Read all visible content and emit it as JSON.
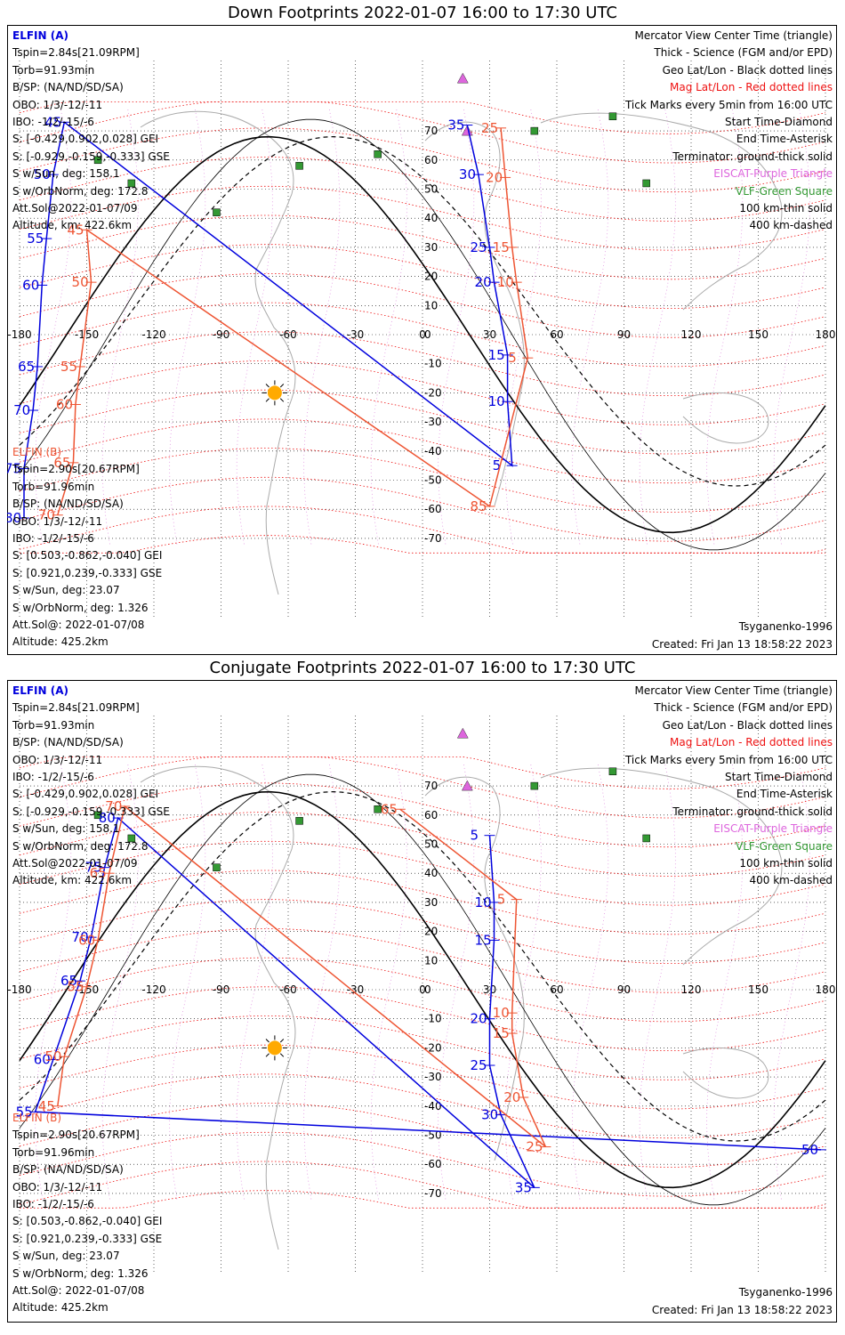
{
  "colors": {
    "elfin_a": "#0000dd",
    "elfin_b": "#ee5533",
    "mag_grid": "#ee1111",
    "geo_grid": "#000000",
    "eiscat": "#dd66dd",
    "vlf": "#339933",
    "coast": "#aaaaaa"
  },
  "axes": {
    "lon_labels": [
      "-180",
      "-150",
      "-120",
      "-90",
      "-60",
      "-30",
      "0",
      "30",
      "60",
      "90",
      "120",
      "150",
      "180"
    ],
    "lat_labels": [
      "70",
      "60",
      "50",
      "40",
      "30",
      "20",
      "10",
      "0",
      "-10",
      "-20",
      "-30",
      "-40",
      "-50",
      "-60",
      "-70"
    ]
  },
  "panels": [
    {
      "title": "Down Footprints 2022-01-07 16:00 to 17:30 UTC",
      "elfin_a": {
        "name": "ELFIN (A)",
        "lines": [
          "Tspin=2.84s[21.09RPM]",
          "Torb=91.93min",
          "B/SP: (NA/ND/SD/SA)",
          "OBO: 1/3/-12/-11",
          "IBO: -1/2/-15/-6",
          "S: [-0.429,0.902,0.028] GEI",
          "S: [-0.929,-0.159,-0.333] GSE",
          "S w/Sun, deg: 158.1",
          "S w/OrbNorm, deg: 172.8",
          "Att.Sol@2022-01-07/09",
          "Altitude, km: 422.6km"
        ]
      },
      "elfin_b": {
        "name": "ELFIN (B)",
        "lines": [
          "Tspin=2.90s[20.67RPM]",
          "Torb=91.96min",
          "B/SP: (NA/ND/SD/SA)",
          "OBO: 1/3/-12/-11",
          "IBO: -1/2/-15/-6",
          "S: [0.503,-0.862,-0.040] GEI",
          "S: [0.921,0.239,-0.333] GSE",
          "S w/Sun, deg: 23.07",
          "S w/OrbNorm, deg: 1.326",
          "Att.Sol@: 2022-01-07/08",
          "Altitude: 425.2km"
        ]
      },
      "legend": [
        {
          "text": "Mercator View Center Time (triangle)",
          "color": "#000000"
        },
        {
          "text": "Thick - Science (FGM and/or EPD)",
          "color": "#000000"
        },
        {
          "text": "Geo Lat/Lon - Black dotted lines",
          "color": "#000000"
        },
        {
          "text": "Mag Lat/Lon - Red dotted lines",
          "color": "#ee1111"
        },
        {
          "text": "Tick Marks every 5min from 16:00 UTC",
          "color": "#000000"
        },
        {
          "text": "Start Time-Diamond",
          "color": "#000000"
        },
        {
          "text": "End Time-Asterisk",
          "color": "#000000"
        },
        {
          "text": "Terminator: ground-thick solid",
          "color": "#000000"
        },
        {
          "text": "EISCAT-Purple Triangle",
          "color": "#dd66dd"
        },
        {
          "text": "VLF-Green Square",
          "color": "#339933"
        },
        {
          "text": "100 km-thin solid",
          "color": "#000000"
        },
        {
          "text": "400 km-dashed",
          "color": "#000000"
        }
      ],
      "model": "Tsyganenko-1996",
      "created": "Created: Fri Jan 13 18:58:22 2023",
      "a_ticks": [
        {
          "label": "35",
          "lon": 20,
          "lat": 72
        },
        {
          "label": "30",
          "lon": 25,
          "lat": 55
        },
        {
          "label": "25",
          "lon": 30,
          "lat": 30
        },
        {
          "label": "20",
          "lon": 32,
          "lat": 18
        },
        {
          "label": "15",
          "lon": 38,
          "lat": -7
        },
        {
          "label": "10",
          "lon": 38,
          "lat": -23
        },
        {
          "label": "5",
          "lon": 40,
          "lat": -45
        },
        {
          "label": "45",
          "lon": -160,
          "lat": 73
        },
        {
          "label": "50",
          "lon": -165,
          "lat": 55
        },
        {
          "label": "55",
          "lon": -168,
          "lat": 33
        },
        {
          "label": "60",
          "lon": -170,
          "lat": 17
        },
        {
          "label": "65",
          "lon": -172,
          "lat": -11
        },
        {
          "label": "70",
          "lon": -174,
          "lat": -26
        },
        {
          "label": "75",
          "lon": -178,
          "lat": -46
        },
        {
          "label": "80",
          "lon": -178,
          "lat": -63
        }
      ],
      "b_ticks": [
        {
          "label": "25",
          "lon": 35,
          "lat": 71
        },
        {
          "label": "20",
          "lon": 37,
          "lat": 54
        },
        {
          "label": "15",
          "lon": 40,
          "lat": 30
        },
        {
          "label": "10",
          "lon": 42,
          "lat": 18
        },
        {
          "label": "5",
          "lon": 47,
          "lat": -8
        },
        {
          "label": "85",
          "lon": 30,
          "lat": -59
        },
        {
          "label": "45",
          "lon": -150,
          "lat": 36
        },
        {
          "label": "50",
          "lon": -148,
          "lat": 18
        },
        {
          "label": "55",
          "lon": -153,
          "lat": -11
        },
        {
          "label": "60",
          "lon": -155,
          "lat": -24
        },
        {
          "label": "65",
          "lon": -156,
          "lat": -44
        },
        {
          "label": "70",
          "lon": -163,
          "lat": -62
        }
      ]
    },
    {
      "title": "Conjugate Footprints 2022-01-07 16:00 to 17:30 UTC",
      "elfin_a": {
        "name": "ELFIN (A)",
        "lines": [
          "Tspin=2.84s[21.09RPM]",
          "Torb=91.93min",
          "B/SP: (NA/ND/SD/SA)",
          "OBO: 1/3/-12/-11",
          "IBO: -1/2/-15/-6",
          "S: [-0.429,0.902,0.028] GEI",
          "S: [-0.929,-0.159,-0.333] GSE",
          "S w/Sun, deg: 158.1",
          "S w/OrbNorm, deg: 172.8",
          "Att.Sol@2022-01-07/09",
          "Altitude, km: 422.6km"
        ]
      },
      "elfin_b": {
        "name": "ELFIN (B)",
        "lines": [
          "Tspin=2.90s[20.67RPM]",
          "Torb=91.96min",
          "B/SP: (NA/ND/SD/SA)",
          "OBO: 1/3/-12/-11",
          "IBO: -1/2/-15/-6",
          "S: [0.503,-0.862,-0.040] GEI",
          "S: [0.921,0.239,-0.333] GSE",
          "S w/Sun, deg: 23.07",
          "S w/OrbNorm, deg: 1.326",
          "Att.Sol@: 2022-01-07/08",
          "Altitude: 425.2km"
        ]
      },
      "legend": [
        {
          "text": "Mercator View Center Time (triangle)",
          "color": "#000000"
        },
        {
          "text": "Thick - Science (FGM and/or EPD)",
          "color": "#000000"
        },
        {
          "text": "Geo Lat/Lon - Black dotted lines",
          "color": "#000000"
        },
        {
          "text": "Mag Lat/Lon - Red dotted lines",
          "color": "#ee1111"
        },
        {
          "text": "Tick Marks every 5min from 16:00 UTC",
          "color": "#000000"
        },
        {
          "text": "Start Time-Diamond",
          "color": "#000000"
        },
        {
          "text": "End Time-Asterisk",
          "color": "#000000"
        },
        {
          "text": "Terminator: ground-thick solid",
          "color": "#000000"
        },
        {
          "text": "EISCAT-Purple Triangle",
          "color": "#dd66dd"
        },
        {
          "text": "VLF-Green Square",
          "color": "#339933"
        },
        {
          "text": "100 km-thin solid",
          "color": "#000000"
        },
        {
          "text": "400 km-dashed",
          "color": "#000000"
        }
      ],
      "model": "Tsyganenko-1996",
      "created": "Created: Fri Jan 13 18:58:22 2023",
      "a_ticks": [
        {
          "label": "5",
          "lon": 30,
          "lat": 53
        },
        {
          "label": "10",
          "lon": 32,
          "lat": 30
        },
        {
          "label": "15",
          "lon": 32,
          "lat": 17
        },
        {
          "label": "20",
          "lon": 30,
          "lat": -10
        },
        {
          "label": "25",
          "lon": 30,
          "lat": -26
        },
        {
          "label": "30",
          "lon": 35,
          "lat": -43
        },
        {
          "label": "35",
          "lon": 50,
          "lat": -68
        },
        {
          "label": "80",
          "lon": -136,
          "lat": 59
        },
        {
          "label": "75",
          "lon": -142,
          "lat": 42
        },
        {
          "label": "70",
          "lon": -148,
          "lat": 18
        },
        {
          "label": "65",
          "lon": -153,
          "lat": 3
        },
        {
          "label": "60",
          "lon": -165,
          "lat": -24
        },
        {
          "label": "55",
          "lon": -173,
          "lat": -42
        },
        {
          "label": "50",
          "lon": 178,
          "lat": -55
        }
      ],
      "b_ticks": [
        {
          "label": "65",
          "lon": -10,
          "lat": 62
        },
        {
          "label": "5",
          "lon": 42,
          "lat": 31
        },
        {
          "label": "10",
          "lon": 40,
          "lat": -8
        },
        {
          "label": "15",
          "lon": 40,
          "lat": -15
        },
        {
          "label": "20",
          "lon": 45,
          "lat": -37
        },
        {
          "label": "25",
          "lon": 55,
          "lat": -54
        },
        {
          "label": "70",
          "lon": -133,
          "lat": 63
        },
        {
          "label": "65",
          "lon": -140,
          "lat": 40
        },
        {
          "label": "60",
          "lon": -145,
          "lat": 17
        },
        {
          "label": "55",
          "lon": -150,
          "lat": 1
        },
        {
          "label": "50",
          "lon": -160,
          "lat": -23
        },
        {
          "label": "45",
          "lon": -163,
          "lat": -40
        }
      ]
    }
  ]
}
